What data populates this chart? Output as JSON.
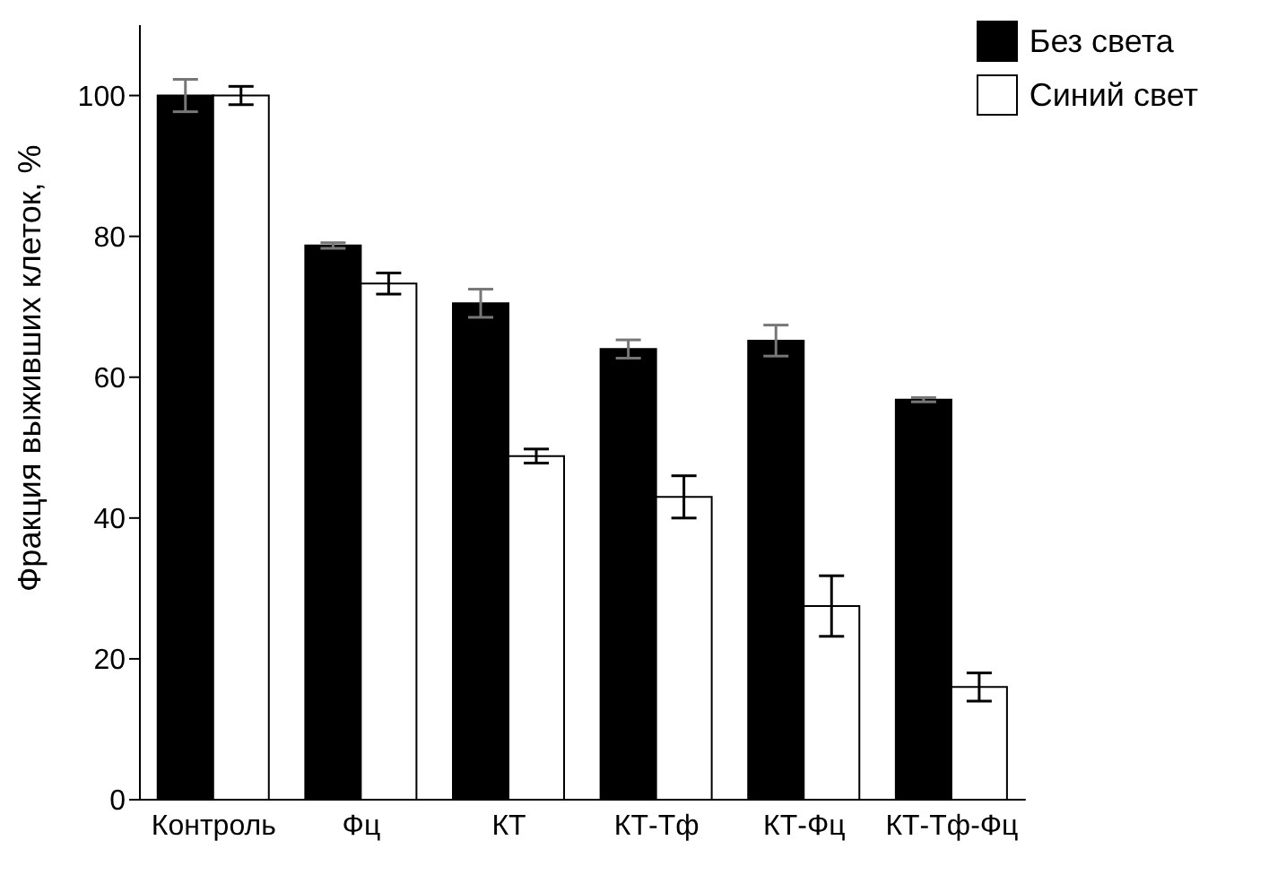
{
  "chart_data": {
    "type": "bar",
    "ylabel": "Фракция выживших клеток, %",
    "categories": [
      "Контроль",
      "Фц",
      "КТ",
      "КТ-Тф",
      "КТ-Фц",
      "КТ-Тф-Фц"
    ],
    "series": [
      {
        "name": "Без света",
        "color": "#000000",
        "values": [
          100,
          78.7,
          70.5,
          64,
          65.2,
          56.8
        ],
        "errors": [
          2.3,
          0.4,
          2,
          1.3,
          2.2,
          0.3
        ]
      },
      {
        "name": "Синий свет",
        "color": "#ffffff",
        "values": [
          100,
          73.3,
          48.8,
          43,
          27.5,
          16
        ],
        "errors": [
          1.3,
          1.5,
          1,
          3,
          4.3,
          2
        ]
      }
    ],
    "ylim": [
      0,
      110
    ],
    "yticks": [
      0,
      20,
      40,
      60,
      80,
      100
    ],
    "grid": false,
    "legend": "top right"
  }
}
